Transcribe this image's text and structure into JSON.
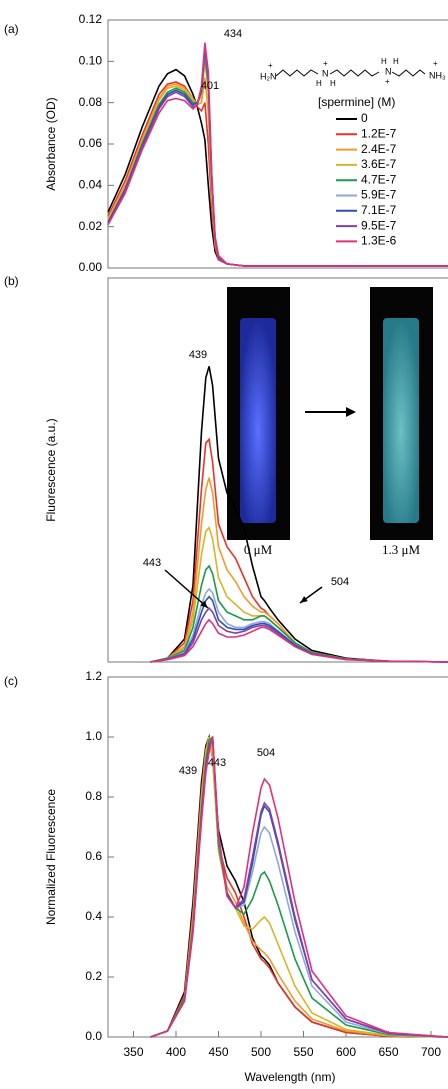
{
  "chart_data": [
    {
      "type": "line",
      "panel_label": "(a)",
      "ylabel": "Absorbance (OD)",
      "xlim": [
        320,
        720
      ],
      "ylim": [
        0,
        0.12
      ],
      "yticks": [
        {
          "value": 0,
          "label": "0.00"
        },
        0.02,
        0.04,
        0.06,
        0.08,
        {
          "value": 0.1,
          "label": "0.10"
        },
        0.12
      ],
      "annotations": [
        "401",
        "434"
      ],
      "legend_title": "[spermine] (M)",
      "structure_labels": [
        "H₂N",
        "+",
        "N",
        "H",
        "H",
        "+",
        "N",
        "H",
        "H",
        "+",
        "NH₃",
        "+"
      ],
      "x": [
        320,
        340,
        360,
        380,
        390,
        400,
        410,
        420,
        425,
        430,
        434,
        438,
        442,
        446,
        450,
        460,
        480,
        520,
        600,
        720
      ],
      "series": [
        {
          "name": "0",
          "color": "#000000",
          "values": [
            0.027,
            0.045,
            0.068,
            0.088,
            0.094,
            0.096,
            0.093,
            0.084,
            0.078,
            0.07,
            0.062,
            0.04,
            0.02,
            0.008,
            0.004,
            0.002,
            0.001,
            0.001,
            0.001,
            0.001
          ]
        },
        {
          "name": "1.2E-7",
          "color": "#e8322a",
          "values": [
            0.025,
            0.042,
            0.064,
            0.084,
            0.089,
            0.09,
            0.088,
            0.082,
            0.078,
            0.076,
            0.08,
            0.06,
            0.03,
            0.01,
            0.004,
            0.002,
            0.001,
            0.001,
            0.001,
            0.001
          ]
        },
        {
          "name": "2.4E-7",
          "color": "#f39a2a",
          "values": [
            0.024,
            0.04,
            0.062,
            0.082,
            0.088,
            0.089,
            0.087,
            0.082,
            0.079,
            0.08,
            0.092,
            0.075,
            0.035,
            0.012,
            0.005,
            0.002,
            0.001,
            0.001,
            0.001,
            0.001
          ]
        },
        {
          "name": "3.6E-7",
          "color": "#d4b62a",
          "values": [
            0.023,
            0.039,
            0.061,
            0.081,
            0.087,
            0.088,
            0.086,
            0.081,
            0.08,
            0.083,
            0.1,
            0.085,
            0.04,
            0.013,
            0.005,
            0.002,
            0.001,
            0.001,
            0.001,
            0.001
          ]
        },
        {
          "name": "4.7E-7",
          "color": "#1a9a4a",
          "values": [
            0.022,
            0.038,
            0.06,
            0.079,
            0.085,
            0.087,
            0.085,
            0.08,
            0.08,
            0.085,
            0.103,
            0.088,
            0.042,
            0.014,
            0.005,
            0.002,
            0.001,
            0.001,
            0.001,
            0.001
          ]
        },
        {
          "name": "5.9E-7",
          "color": "#8fa6e0",
          "values": [
            0.022,
            0.038,
            0.059,
            0.078,
            0.084,
            0.086,
            0.084,
            0.079,
            0.08,
            0.086,
            0.105,
            0.09,
            0.043,
            0.014,
            0.005,
            0.002,
            0.001,
            0.001,
            0.001,
            0.001
          ]
        },
        {
          "name": "7.1E-7",
          "color": "#3050b0",
          "values": [
            0.022,
            0.038,
            0.059,
            0.078,
            0.084,
            0.086,
            0.084,
            0.079,
            0.08,
            0.086,
            0.106,
            0.091,
            0.044,
            0.014,
            0.005,
            0.002,
            0.001,
            0.001,
            0.001,
            0.001
          ]
        },
        {
          "name": "9.5E-7",
          "color": "#8040a8",
          "values": [
            0.021,
            0.037,
            0.058,
            0.077,
            0.083,
            0.085,
            0.083,
            0.078,
            0.079,
            0.087,
            0.107,
            0.092,
            0.045,
            0.015,
            0.005,
            0.002,
            0.001,
            0.001,
            0.001,
            0.001
          ]
        },
        {
          "name": "1.3E-6",
          "color": "#e0307a",
          "values": [
            0.021,
            0.036,
            0.057,
            0.075,
            0.081,
            0.082,
            0.081,
            0.077,
            0.079,
            0.088,
            0.109,
            0.095,
            0.046,
            0.015,
            0.006,
            0.002,
            0.001,
            0.001,
            0.001,
            0.001
          ]
        }
      ]
    },
    {
      "type": "line",
      "panel_label": "(b)",
      "ylabel": "Fluorescence (a.u.)",
      "xlim": [
        320,
        720
      ],
      "ylim": [
        0,
        1
      ],
      "annotations": [
        "439",
        "443",
        "504"
      ],
      "inset_labels": [
        "0 μM",
        "1.3 μM"
      ],
      "x": [
        370,
        390,
        410,
        420,
        430,
        435,
        439,
        443,
        450,
        460,
        470,
        480,
        490,
        500,
        504,
        510,
        520,
        540,
        560,
        600,
        650,
        720
      ],
      "series": [
        {
          "color": "#000000",
          "values": [
            0,
            0.01,
            0.06,
            0.2,
            0.6,
            0.74,
            0.77,
            0.72,
            0.53,
            0.44,
            0.4,
            0.35,
            0.25,
            0.17,
            0.16,
            0.14,
            0.11,
            0.06,
            0.03,
            0.01,
            0.002,
            0
          ]
        },
        {
          "color": "#e8322a",
          "values": [
            0,
            0.01,
            0.05,
            0.16,
            0.45,
            0.57,
            0.58,
            0.52,
            0.36,
            0.3,
            0.27,
            0.22,
            0.17,
            0.14,
            0.135,
            0.12,
            0.1,
            0.05,
            0.025,
            0.008,
            0.002,
            0
          ]
        },
        {
          "color": "#f39a2a",
          "values": [
            0,
            0.01,
            0.04,
            0.13,
            0.36,
            0.45,
            0.48,
            0.44,
            0.3,
            0.24,
            0.21,
            0.17,
            0.145,
            0.13,
            0.13,
            0.12,
            0.1,
            0.05,
            0.025,
            0.008,
            0.002,
            0
          ]
        },
        {
          "color": "#d4b62a",
          "values": [
            0,
            0.01,
            0.035,
            0.11,
            0.28,
            0.34,
            0.35,
            0.32,
            0.22,
            0.17,
            0.15,
            0.13,
            0.12,
            0.12,
            0.12,
            0.11,
            0.09,
            0.05,
            0.024,
            0.008,
            0.002,
            0
          ]
        },
        {
          "color": "#1a9a4a",
          "values": [
            0,
            0.01,
            0.03,
            0.09,
            0.2,
            0.24,
            0.25,
            0.23,
            0.16,
            0.13,
            0.12,
            0.11,
            0.11,
            0.12,
            0.12,
            0.11,
            0.09,
            0.05,
            0.024,
            0.008,
            0.002,
            0
          ]
        },
        {
          "color": "#8fa6e0",
          "values": [
            0,
            0.008,
            0.025,
            0.07,
            0.15,
            0.18,
            0.19,
            0.18,
            0.13,
            0.1,
            0.09,
            0.09,
            0.1,
            0.105,
            0.105,
            0.1,
            0.08,
            0.045,
            0.022,
            0.007,
            0.002,
            0
          ]
        },
        {
          "color": "#3050b0",
          "values": [
            0,
            0.008,
            0.022,
            0.06,
            0.13,
            0.16,
            0.17,
            0.16,
            0.11,
            0.09,
            0.085,
            0.085,
            0.095,
            0.1,
            0.1,
            0.095,
            0.08,
            0.044,
            0.022,
            0.007,
            0.002,
            0
          ]
        },
        {
          "color": "#8040a8",
          "values": [
            0,
            0.007,
            0.02,
            0.05,
            0.11,
            0.13,
            0.14,
            0.13,
            0.095,
            0.08,
            0.075,
            0.08,
            0.09,
            0.095,
            0.095,
            0.09,
            0.075,
            0.04,
            0.02,
            0.007,
            0.002,
            0
          ]
        },
        {
          "color": "#e0307a",
          "values": [
            0,
            0.006,
            0.017,
            0.04,
            0.08,
            0.1,
            0.11,
            0.1,
            0.075,
            0.065,
            0.065,
            0.07,
            0.08,
            0.09,
            0.09,
            0.085,
            0.07,
            0.04,
            0.02,
            0.006,
            0.002,
            0
          ]
        }
      ]
    },
    {
      "type": "line",
      "panel_label": "(c)",
      "ylabel": "Normalized Fluorescence",
      "xlabel": "Wavelength (nm)",
      "xlim": [
        320,
        720
      ],
      "ylim": [
        0,
        1.2
      ],
      "yticks": [
        {
          "value": 0,
          "label": "0.0"
        },
        0.2,
        0.4,
        0.6,
        0.8,
        {
          "value": 1,
          "label": "1.0"
        },
        1.2
      ],
      "xticks": [
        350,
        400,
        450,
        500,
        550,
        600,
        650,
        700
      ],
      "annotations": [
        "439",
        "443",
        "504"
      ],
      "x": [
        370,
        390,
        410,
        420,
        430,
        435,
        439,
        443,
        450,
        460,
        470,
        480,
        490,
        500,
        504,
        510,
        520,
        540,
        560,
        600,
        650,
        720
      ],
      "series": [
        {
          "color": "#000000",
          "values": [
            0,
            0.02,
            0.15,
            0.45,
            0.85,
            0.97,
            1,
            0.93,
            0.69,
            0.57,
            0.52,
            0.45,
            0.33,
            0.27,
            0.26,
            0.24,
            0.18,
            0.1,
            0.05,
            0.015,
            0.003,
            0
          ]
        },
        {
          "color": "#e8322a",
          "values": [
            0,
            0.02,
            0.14,
            0.42,
            0.82,
            0.96,
            1,
            0.93,
            0.64,
            0.53,
            0.48,
            0.4,
            0.31,
            0.26,
            0.25,
            0.23,
            0.18,
            0.1,
            0.05,
            0.015,
            0.003,
            0
          ]
        },
        {
          "color": "#f39a2a",
          "values": [
            0,
            0.02,
            0.13,
            0.4,
            0.8,
            0.95,
            1,
            0.93,
            0.63,
            0.5,
            0.45,
            0.38,
            0.32,
            0.29,
            0.28,
            0.26,
            0.21,
            0.12,
            0.06,
            0.02,
            0.004,
            0
          ]
        },
        {
          "color": "#d4b62a",
          "values": [
            0,
            0.02,
            0.13,
            0.38,
            0.78,
            0.93,
            1,
            0.95,
            0.62,
            0.48,
            0.43,
            0.37,
            0.36,
            0.39,
            0.4,
            0.38,
            0.31,
            0.17,
            0.08,
            0.025,
            0.005,
            0
          ]
        },
        {
          "color": "#1a9a4a",
          "values": [
            0,
            0.02,
            0.13,
            0.37,
            0.76,
            0.92,
            0.99,
            1,
            0.64,
            0.48,
            0.43,
            0.41,
            0.46,
            0.54,
            0.55,
            0.52,
            0.44,
            0.26,
            0.13,
            0.04,
            0.008,
            0
          ]
        },
        {
          "color": "#8fa6e0",
          "values": [
            0,
            0.02,
            0.12,
            0.36,
            0.74,
            0.9,
            0.97,
            1,
            0.66,
            0.48,
            0.43,
            0.44,
            0.55,
            0.68,
            0.7,
            0.68,
            0.58,
            0.35,
            0.17,
            0.05,
            0.01,
            0
          ]
        },
        {
          "color": "#3050b0",
          "values": [
            0,
            0.02,
            0.12,
            0.36,
            0.74,
            0.9,
            0.97,
            1,
            0.67,
            0.48,
            0.43,
            0.45,
            0.58,
            0.74,
            0.77,
            0.75,
            0.64,
            0.39,
            0.19,
            0.06,
            0.012,
            0
          ]
        },
        {
          "color": "#8040a8",
          "values": [
            0,
            0.02,
            0.12,
            0.35,
            0.73,
            0.89,
            0.96,
            1,
            0.67,
            0.47,
            0.43,
            0.46,
            0.6,
            0.75,
            0.78,
            0.76,
            0.65,
            0.4,
            0.19,
            0.06,
            0.012,
            0
          ]
        },
        {
          "color": "#e0307a",
          "values": [
            0,
            0.02,
            0.12,
            0.35,
            0.72,
            0.88,
            0.95,
            1,
            0.68,
            0.47,
            0.43,
            0.5,
            0.68,
            0.83,
            0.86,
            0.84,
            0.73,
            0.45,
            0.22,
            0.07,
            0.015,
            0
          ]
        }
      ]
    }
  ]
}
